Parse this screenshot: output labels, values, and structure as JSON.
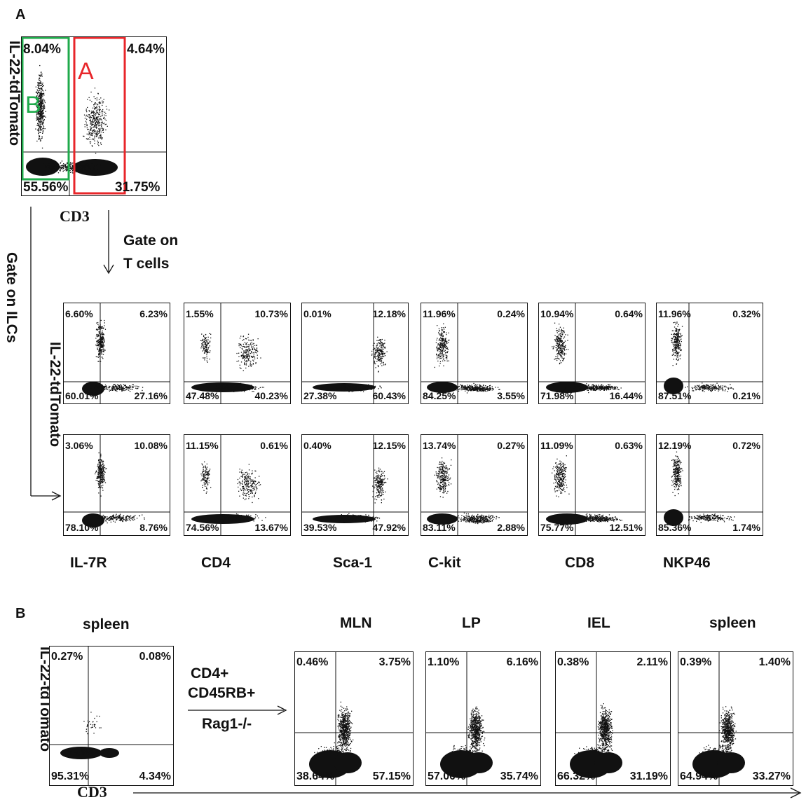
{
  "panels": {
    "a_letter": "A",
    "b_letter": "B"
  },
  "panel_a": {
    "main_plot": {
      "y_label": "IL-22-tdTomato",
      "x_label": "CD3",
      "quadrants": {
        "ul": "8.04%",
        "ur": "4.64%",
        "ll": "55.56%",
        "lr": "31.75%"
      },
      "gate_a_label": "A",
      "gate_b_label": "B",
      "gate_a_color": "#e8262a",
      "gate_b_color": "#1faa4b"
    },
    "gate_t_cells": "Gate on\nT cells",
    "gate_t_line1": "Gate on",
    "gate_t_line2": "T cells",
    "gate_ilcs": "Gate on ILCs",
    "grid_y_label": "IL-22-tdTomato",
    "columns": [
      "IL-7R",
      "CD4",
      "Sca-1",
      "C-kit",
      "CD8",
      "NKP46"
    ],
    "row_t": [
      {
        "ul": "6.60%",
        "ur": "6.23%",
        "ll": "60.01%",
        "lr": "27.16%"
      },
      {
        "ul": "1.55%",
        "ur": "10.73%",
        "ll": "47.48%",
        "lr": "40.23%"
      },
      {
        "ul": "0.01%",
        "ur": "12.18%",
        "ll": "27.38%",
        "lr": "60.43%"
      },
      {
        "ul": "11.96%",
        "ur": "0.24%",
        "ll": "84.25%",
        "lr": "3.55%"
      },
      {
        "ul": "10.94%",
        "ur": "0.64%",
        "ll": "71.98%",
        "lr": "16.44%"
      },
      {
        "ul": "11.96%",
        "ur": "0.32%",
        "ll": "87.51%",
        "lr": "0.21%"
      }
    ],
    "row_ilc": [
      {
        "ul": "3.06%",
        "ur": "10.08%",
        "ll": "78.10%",
        "lr": "8.76%"
      },
      {
        "ul": "11.15%",
        "ur": "0.61%",
        "ll": "74.56%",
        "lr": "13.67%"
      },
      {
        "ul": "0.40%",
        "ur": "12.15%",
        "ll": "39.53%",
        "lr": "47.92%"
      },
      {
        "ul": "13.74%",
        "ur": "0.27%",
        "ll": "83.11%",
        "lr": "2.88%"
      },
      {
        "ul": "11.09%",
        "ur": "0.63%",
        "ll": "75.77%",
        "lr": "12.51%"
      },
      {
        "ul": "12.19%",
        "ur": "0.72%",
        "ll": "85.36%",
        "lr": "1.74%"
      }
    ]
  },
  "panel_b": {
    "y_label": "IL-22-tdTomato",
    "x_label": "CD3",
    "transfer_line1": "CD4+",
    "transfer_line2": "CD45RB+",
    "transfer_line3": "Rag1-/-",
    "plots": [
      {
        "title": "spleen",
        "ul": "0.27%",
        "ur": "0.08%",
        "ll": "95.31%",
        "lr": "4.34%"
      },
      {
        "title": "MLN",
        "ul": "0.46%",
        "ur": "3.75%",
        "ll": "38.64%",
        "lr": "57.15%"
      },
      {
        "title": "LP",
        "ul": "1.10%",
        "ur": "6.16%",
        "ll": "57.00%",
        "lr": "35.74%"
      },
      {
        "title": "IEL",
        "ul": "0.38%",
        "ur": "2.11%",
        "ll": "66.32%",
        "lr": "31.19%"
      },
      {
        "title": "spleen",
        "ul": "0.39%",
        "ur": "1.40%",
        "ll": "64.94%",
        "lr": "33.27%"
      }
    ]
  }
}
